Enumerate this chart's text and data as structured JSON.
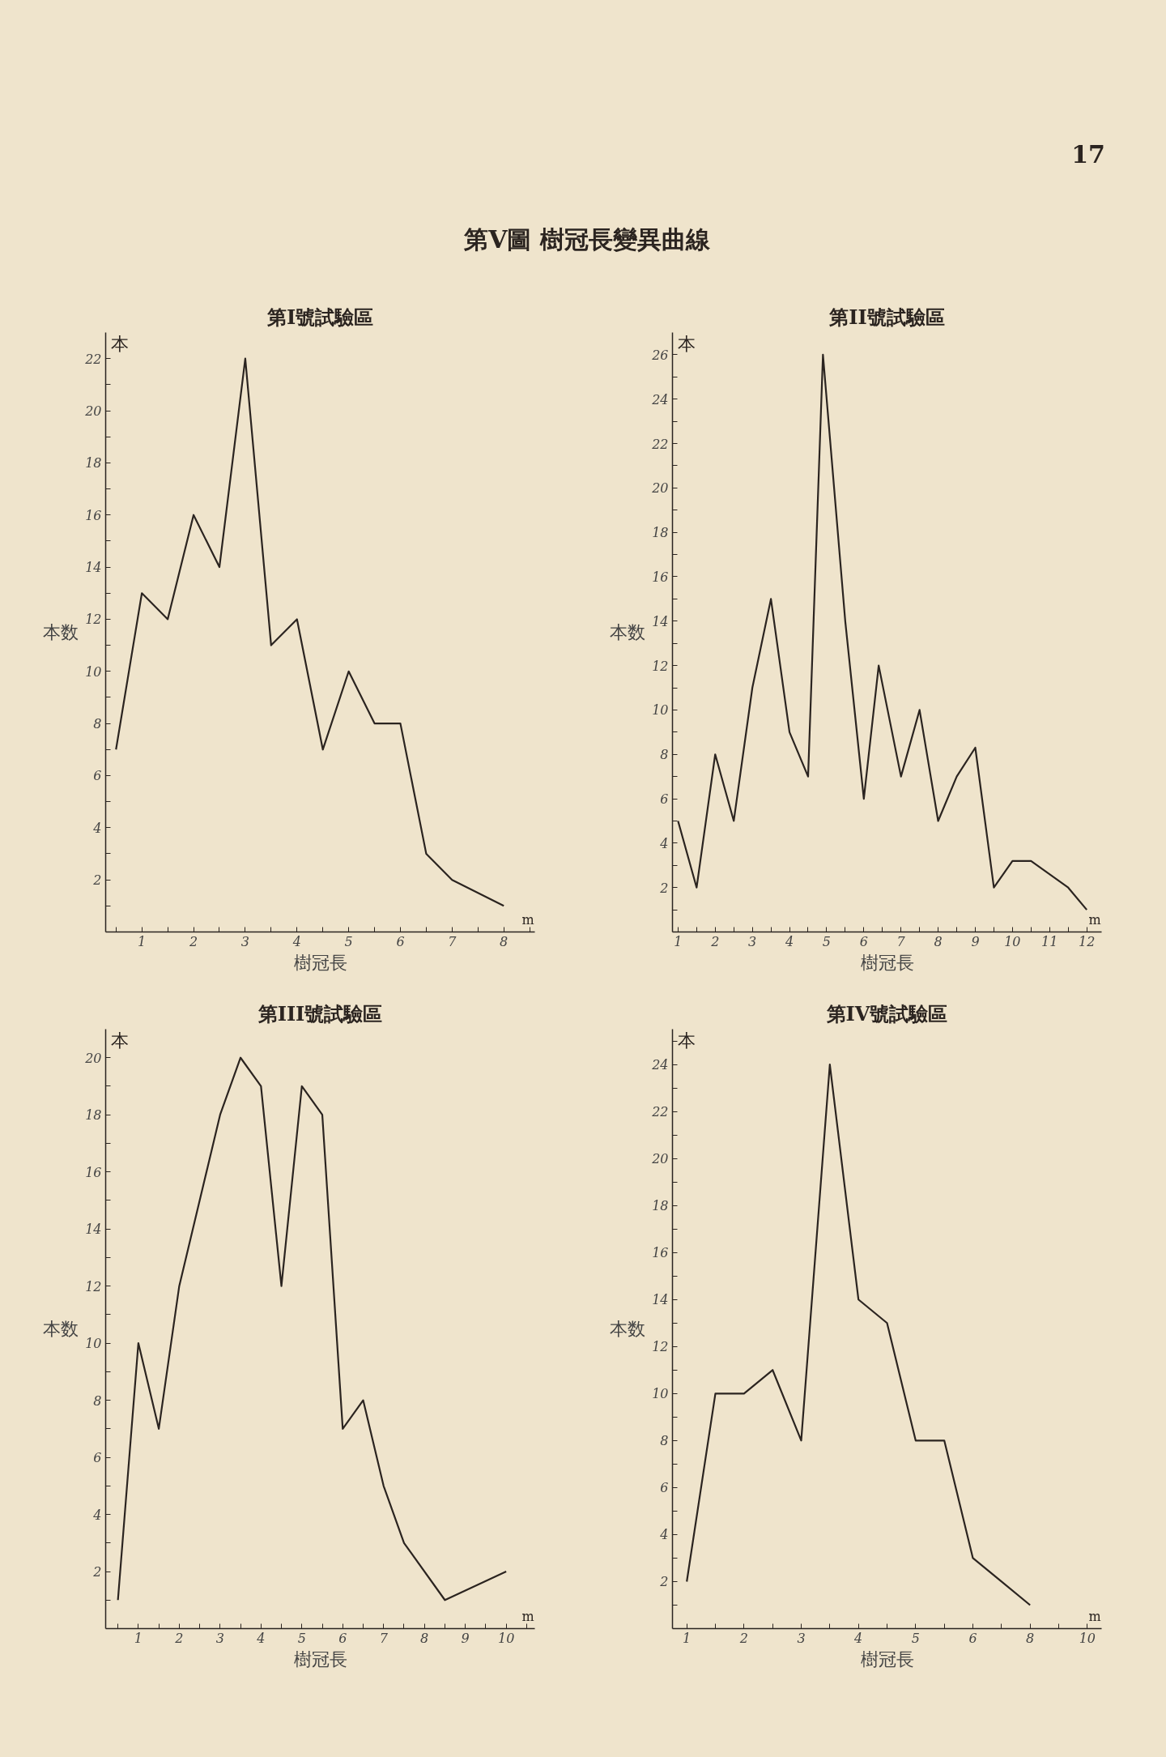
{
  "chart_data": [
    {
      "type": "line",
      "title": "第I號試驗區",
      "xlabel": "樹冠長",
      "ylabel": "本数",
      "annotations": [
        "第V圖 樹冠長變異曲線",
        "17",
        "本",
        "m"
      ],
      "x": [
        0.5,
        1,
        1.5,
        2,
        2.5,
        3,
        3.5,
        4,
        4.5,
        5,
        5.5,
        6,
        6.5,
        7,
        8
      ],
      "series": [
        {
          "color": "#2b2420",
          "values": [
            7,
            13,
            12,
            16,
            14,
            22,
            11,
            12,
            7,
            10,
            8,
            8,
            3,
            2,
            1
          ]
        }
      ],
      "xlim": [
        0.3,
        8.6
      ],
      "ylim": [
        0,
        23
      ],
      "xticks": [
        {
          "value": 0.5,
          "label": null
        },
        1,
        {
          "value": 1.5,
          "label": null
        },
        2,
        {
          "value": 2.5,
          "label": null
        },
        3,
        {
          "value": 3.5,
          "label": null
        },
        4,
        {
          "value": 4.5,
          "label": null
        },
        5,
        {
          "value": 5.5,
          "label": null
        },
        6,
        {
          "value": 6.5,
          "label": null
        },
        7,
        {
          "value": 7.5,
          "label": null
        },
        8,
        {
          "value": 8.5,
          "label": null
        }
      ],
      "yticks": [
        {
          "value": 1,
          "label": null
        },
        2,
        {
          "value": 3,
          "label": null
        },
        4,
        {
          "value": 5,
          "label": null
        },
        6,
        {
          "value": 7,
          "label": null
        },
        8,
        {
          "value": 9,
          "label": null
        },
        10,
        {
          "value": 11,
          "label": null
        },
        12,
        {
          "value": 13,
          "label": null
        },
        14,
        {
          "value": 15,
          "label": null
        },
        16,
        {
          "value": 17,
          "label": null
        },
        18,
        {
          "value": 19,
          "label": null
        },
        20,
        {
          "value": 21,
          "label": null
        },
        22
      ],
      "grid": false,
      "marker": "none",
      "line_style": "solid"
    },
    {
      "type": "line",
      "title": "第II號試驗區",
      "xlabel": "樹冠長",
      "ylabel": "本数",
      "annotations": [
        "本",
        "m"
      ],
      "x": [
        1,
        1.5,
        2,
        2.5,
        3,
        3.5,
        4,
        4.5,
        4.9,
        5.5,
        6,
        6.4,
        7,
        7.5,
        8,
        8.5,
        9,
        9.5,
        10,
        10.5,
        11.5,
        12
      ],
      "series": [
        {
          "color": "#2b2420",
          "values": [
            5,
            2,
            8,
            5,
            11,
            15,
            9,
            7,
            26,
            14,
            6,
            12,
            7,
            10,
            5,
            7,
            8.3,
            2,
            3.2,
            3.2,
            2,
            1
          ]
        }
      ],
      "xlim": [
        0.85,
        12.4
      ],
      "ylim": [
        0,
        27
      ],
      "xticks": [
        1,
        {
          "value": 1.5,
          "label": null
        },
        2,
        {
          "value": 2.5,
          "label": null
        },
        3,
        {
          "value": 3.5,
          "label": null
        },
        4,
        {
          "value": 4.5,
          "label": null
        },
        5,
        {
          "value": 5.5,
          "label": null
        },
        6,
        {
          "value": 6.5,
          "label": null
        },
        7,
        {
          "value": 7.5,
          "label": null
        },
        8,
        {
          "value": 8.5,
          "label": null
        },
        9,
        {
          "value": 9.5,
          "label": null
        },
        10,
        {
          "value": 10.5,
          "label": null
        },
        11,
        {
          "value": 11.5,
          "label": null
        },
        12
      ],
      "yticks": [
        {
          "value": 1,
          "label": null
        },
        2,
        {
          "value": 3,
          "label": null
        },
        4,
        {
          "value": 5,
          "label": null
        },
        6,
        {
          "value": 7,
          "label": null
        },
        8,
        {
          "value": 9,
          "label": null
        },
        10,
        {
          "value": 11,
          "label": null
        },
        12,
        {
          "value": 13,
          "label": null
        },
        14,
        {
          "value": 15,
          "label": null
        },
        16,
        {
          "value": 17,
          "label": null
        },
        18,
        {
          "value": 19,
          "label": null
        },
        20,
        {
          "value": 21,
          "label": null
        },
        22,
        {
          "value": 23,
          "label": null
        },
        24,
        {
          "value": 25,
          "label": null
        },
        26
      ],
      "grid": false,
      "marker": "none",
      "line_style": "solid"
    },
    {
      "type": "line",
      "title": "第III號試驗區",
      "xlabel": "樹冠長",
      "ylabel": "本数",
      "annotations": [
        "本",
        "m"
      ],
      "x": [
        0.5,
        1,
        1.5,
        2,
        3,
        3.5,
        4,
        4.5,
        5,
        5.5,
        6,
        6.5,
        7,
        7.5,
        8.5,
        10
      ],
      "series": [
        {
          "color": "#2b2420",
          "values": [
            1,
            10,
            7,
            12,
            18,
            20,
            19,
            12,
            19,
            18,
            7,
            8,
            5,
            3,
            1,
            2
          ]
        }
      ],
      "xlim": [
        0.2,
        10.7
      ],
      "ylim": [
        0,
        21
      ],
      "xticks": [
        {
          "value": 0.5,
          "label": null
        },
        1,
        {
          "value": 1.5,
          "label": null
        },
        2,
        {
          "value": 2.5,
          "label": null
        },
        3,
        {
          "value": 3.5,
          "label": null
        },
        4,
        {
          "value": 4.5,
          "label": null
        },
        5,
        {
          "value": 5.5,
          "label": null
        },
        6,
        {
          "value": 6.5,
          "label": null
        },
        7,
        {
          "value": 7.5,
          "label": null
        },
        8,
        {
          "value": 8.5,
          "label": null
        },
        9,
        {
          "value": 9.5,
          "label": null
        },
        10,
        {
          "value": 10.5,
          "label": null
        }
      ],
      "yticks": [
        {
          "value": 1,
          "label": null
        },
        2,
        {
          "value": 3,
          "label": null
        },
        4,
        {
          "value": 5,
          "label": null
        },
        6,
        {
          "value": 7,
          "label": null
        },
        8,
        {
          "value": 9,
          "label": null
        },
        10,
        {
          "value": 11,
          "label": null
        },
        12,
        {
          "value": 13,
          "label": null
        },
        14,
        {
          "value": 15,
          "label": null
        },
        16,
        {
          "value": 17,
          "label": null
        },
        18,
        {
          "value": 19,
          "label": null
        },
        20
      ],
      "grid": false,
      "marker": "none",
      "line_style": "solid"
    },
    {
      "type": "line",
      "title": "第IV號試驗區",
      "xlabel": "樹冠長",
      "ylabel": "本数",
      "annotations": [
        "本",
        "m"
      ],
      "categories": [
        "1",
        null,
        "2",
        null,
        "3",
        null,
        "4",
        null,
        "5",
        null,
        "6",
        null,
        "8",
        null,
        "10"
      ],
      "series": [
        {
          "color": "#2b2420",
          "values": [
            2,
            10,
            10,
            11,
            8,
            24,
            14,
            13,
            8,
            8,
            3,
            2,
            1,
            null,
            null
          ]
        }
      ],
      "ylim": [
        0,
        25.5
      ],
      "yticks": [
        {
          "value": 1,
          "label": null
        },
        2,
        {
          "value": 3,
          "label": null
        },
        4,
        {
          "value": 5,
          "label": null
        },
        6,
        {
          "value": 7,
          "label": null
        },
        8,
        {
          "value": 9,
          "label": null
        },
        10,
        {
          "value": 11,
          "label": null
        },
        12,
        {
          "value": 13,
          "label": null
        },
        14,
        {
          "value": 15,
          "label": null
        },
        16,
        {
          "value": 17,
          "label": null
        },
        18,
        {
          "value": 19,
          "label": null
        },
        20,
        {
          "value": 21,
          "label": null
        },
        22,
        {
          "value": 23,
          "label": null
        },
        24,
        {
          "value": 25,
          "label": null
        }
      ],
      "grid": false,
      "marker": "none",
      "line_style": "solid"
    }
  ]
}
